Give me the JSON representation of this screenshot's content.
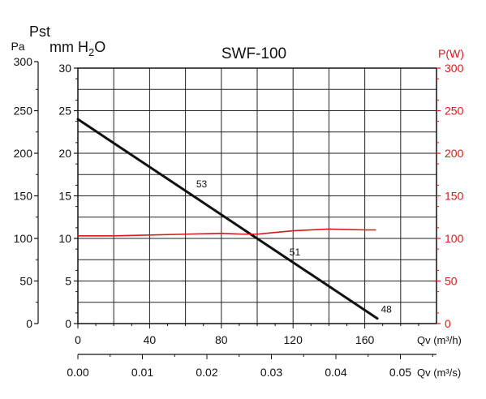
{
  "chart_data": {
    "type": "line",
    "title": "SWF-100",
    "left_axis_pa": {
      "label_top": "Pst",
      "unit": "Pa",
      "ticks": [
        "0",
        "50",
        "100",
        "150",
        "200",
        "250",
        "300"
      ],
      "range": [
        0,
        300
      ]
    },
    "left_axis_mmh2o": {
      "label_prefix": "mm H",
      "label_sub": "2",
      "label_suffix": "O",
      "ticks": [
        "0",
        "5",
        "10",
        "15",
        "20",
        "25",
        "30"
      ],
      "range": [
        0,
        30
      ]
    },
    "right_axis": {
      "label": "P(W)",
      "ticks": [
        "0",
        "50",
        "100",
        "150",
        "200",
        "250",
        "300"
      ],
      "range": [
        0,
        300
      ],
      "color": "#d7191c"
    },
    "x_axis_m3h": {
      "label": "Qv (m³/h)",
      "ticks": [
        {
          "value": 0,
          "label": "0"
        },
        {
          "value": 40,
          "label": "40"
        },
        {
          "value": 80,
          "label": "80"
        },
        {
          "value": 120,
          "label": "120"
        },
        {
          "value": 160,
          "label": "160"
        }
      ],
      "range": [
        0,
        200
      ]
    },
    "x_axis_m3s": {
      "label": "Qv (m³/s)",
      "ticks": [
        {
          "value": 0.0,
          "label": "0.00"
        },
        {
          "value": 0.01,
          "label": "0.01"
        },
        {
          "value": 0.02,
          "label": "0.02"
        },
        {
          "value": 0.03,
          "label": "0.03"
        },
        {
          "value": 0.04,
          "label": "0.04"
        },
        {
          "value": 0.05,
          "label": "0.05"
        }
      ],
      "range": [
        0,
        0.0556
      ]
    },
    "grid": true,
    "series": [
      {
        "axis": "left",
        "color": "#111111",
        "x": [
          0,
          167
        ],
        "y": [
          240,
          6
        ]
      },
      {
        "axis": "right",
        "color": "#d7191c",
        "x": [
          0,
          20,
          40,
          60,
          80,
          92,
          100,
          105,
          120,
          140,
          160,
          166
        ],
        "y": [
          103,
          103,
          104,
          105,
          106,
          105,
          105,
          106,
          109,
          111,
          110,
          110
        ]
      }
    ],
    "annotations": [
      {
        "text": "53",
        "x": 66,
        "y": 160
      },
      {
        "text": "51",
        "x": 118,
        "y": 80
      },
      {
        "text": "48",
        "x": 169,
        "y": 13
      }
    ]
  }
}
